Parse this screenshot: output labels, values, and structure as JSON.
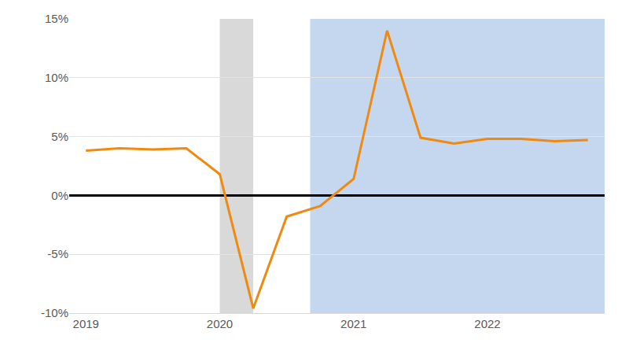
{
  "chart_data": {
    "type": "line",
    "categories": [
      "2019",
      null,
      null,
      null,
      "2020",
      null,
      null,
      null,
      "2021",
      null,
      null,
      null,
      "2022",
      null,
      null,
      null
    ],
    "values": [
      3.8,
      4.0,
      3.9,
      4.0,
      1.8,
      -9.6,
      -1.8,
      -0.9,
      1.4,
      14.0,
      4.9,
      4.4,
      4.8,
      4.8,
      4.6,
      4.7
    ],
    "color": "#f0890f",
    "ylim": [
      -10,
      15
    ],
    "yticks": [
      {
        "value": -10,
        "label": "-10%"
      },
      {
        "value": -5,
        "label": "-5%"
      },
      {
        "value": 0,
        "label": "0%"
      },
      {
        "value": 5,
        "label": "5%"
      },
      {
        "value": 10,
        "label": "10%"
      },
      {
        "value": 15,
        "label": "15%"
      }
    ],
    "grid": true,
    "shaded": [
      {
        "from": 4,
        "to": 5,
        "color": "#d9d9d9"
      },
      {
        "from": 6.7,
        "to": 15.5,
        "color": "#c5d7ef"
      }
    ]
  }
}
